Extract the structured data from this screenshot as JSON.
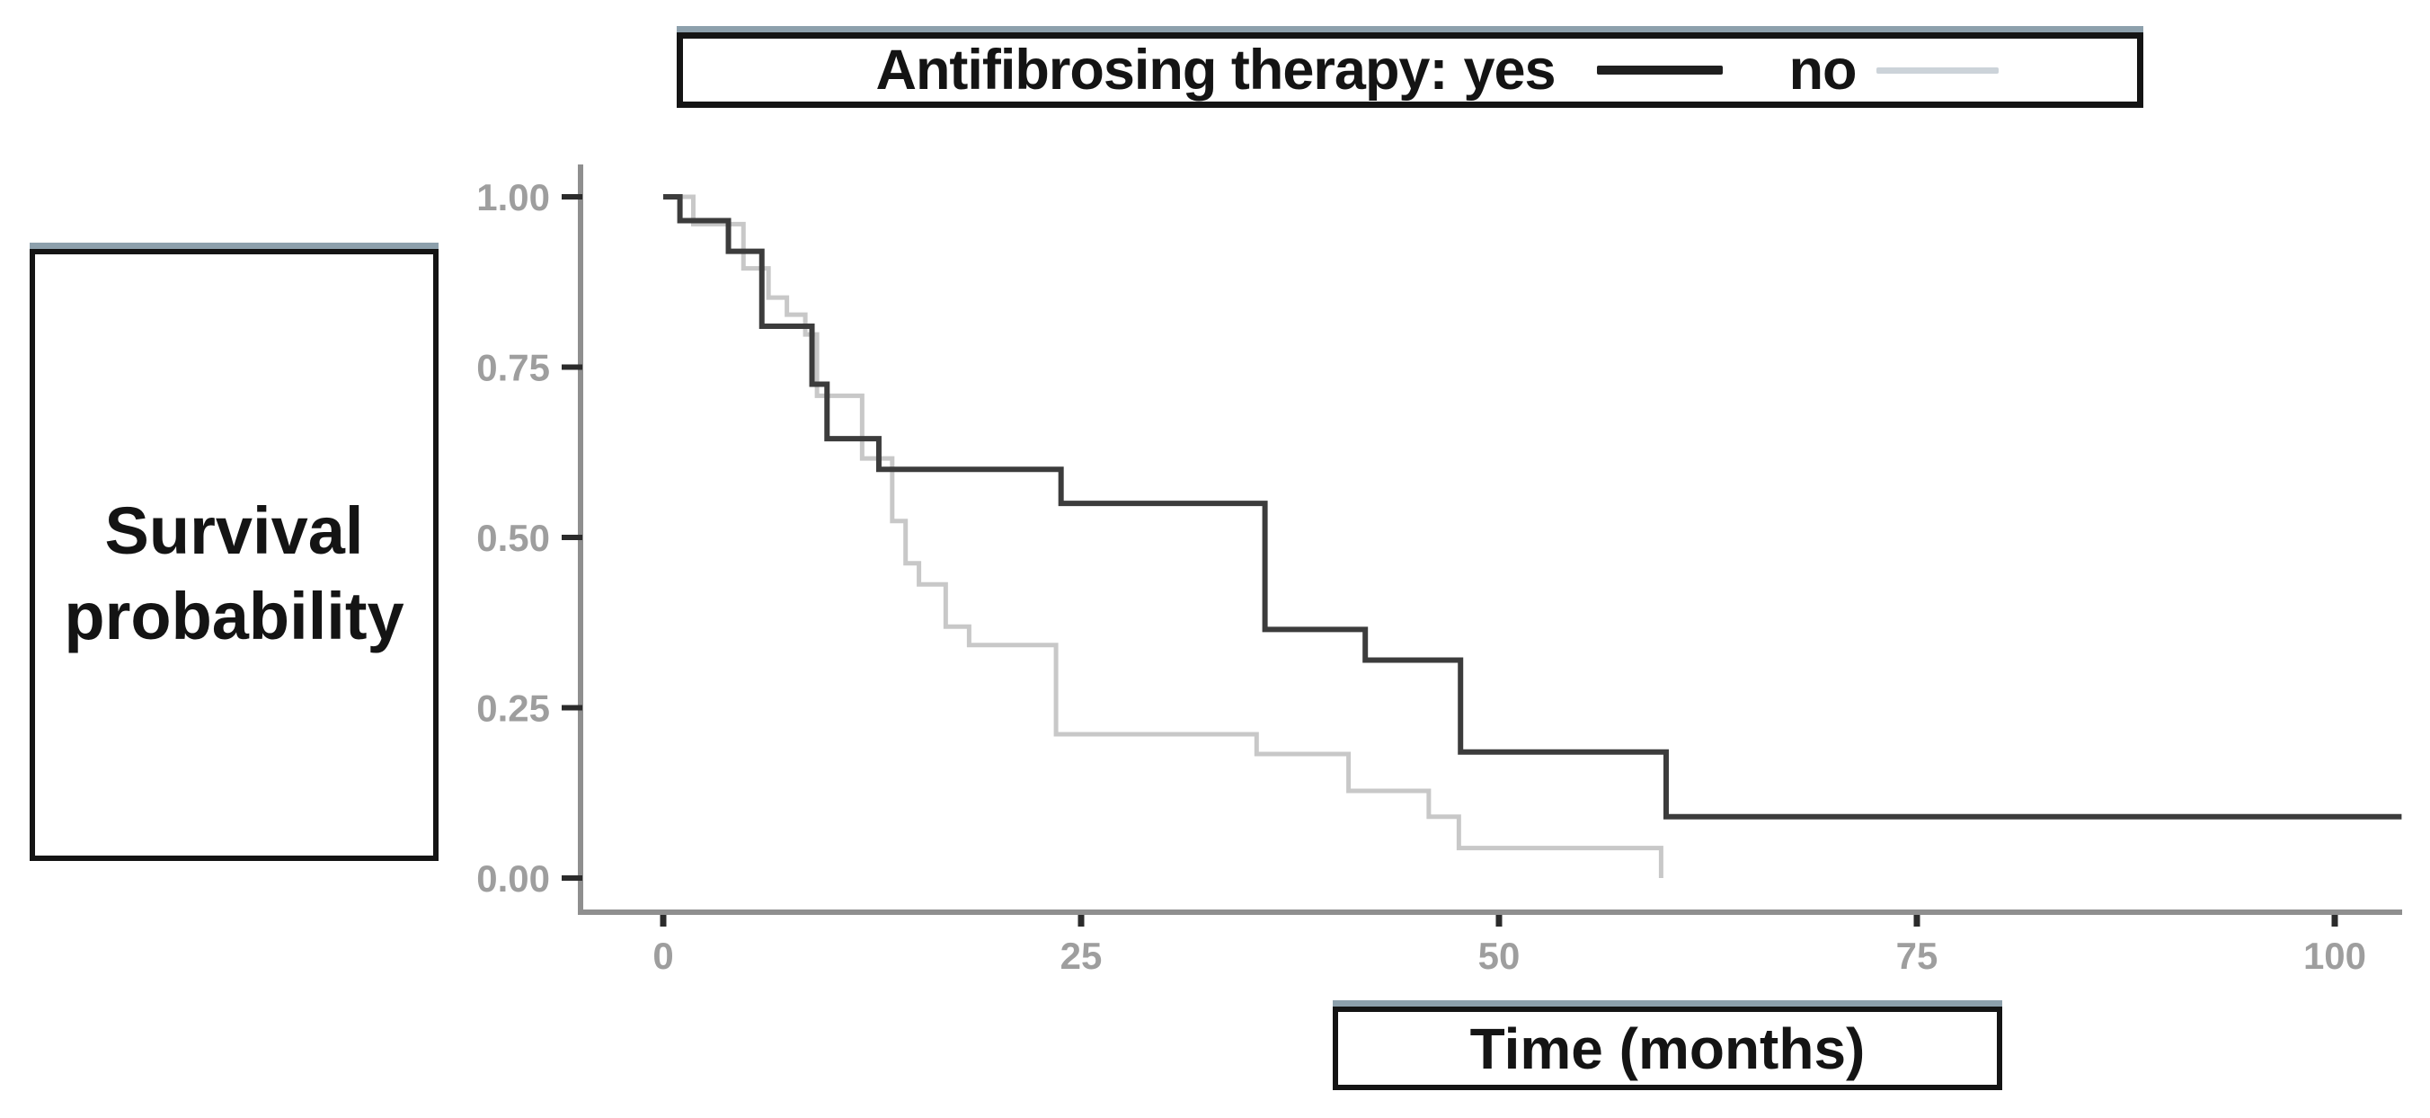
{
  "legend": {
    "title": "Antifibrosing therapy:",
    "items": [
      {
        "label": "yes",
        "color": "#1f1f1f"
      },
      {
        "label": "no",
        "color": "#ccd3d9"
      }
    ]
  },
  "y_axis": {
    "label": "Survival probability",
    "ticks": [
      "1.00",
      "0.75",
      "0.50",
      "0.25",
      "0.00"
    ],
    "tick_values": [
      1.0,
      0.75,
      0.5,
      0.25,
      0.0
    ]
  },
  "x_axis": {
    "label": "Time (months)",
    "ticks": [
      "0",
      "25",
      "50",
      "75",
      "100"
    ],
    "tick_values": [
      0,
      25,
      50,
      75,
      100
    ]
  },
  "chart_data": {
    "type": "line",
    "subtype": "kaplan-meier-step",
    "title": "Antifibrosing therapy: yes vs no",
    "xlabel": "Time (months)",
    "ylabel": "Survival probability",
    "xlim": [
      0,
      104
    ],
    "ylim": [
      0.0,
      1.0
    ],
    "grid": false,
    "legend_position": "top",
    "colors": {
      "yes_curve": "#3c3c3c",
      "no_curve": "#c8c8c8",
      "axis_line": "#8f8f8f",
      "tick_mark": "#2b2b2b",
      "tick_text": "#9e9e9e"
    },
    "series": [
      {
        "name": "no",
        "color": "#c8c8c8",
        "stroke_width": 5,
        "tail_to_x": null,
        "points": [
          [
            0,
            1.0
          ],
          [
            1.8,
            0.96
          ],
          [
            4.8,
            0.895
          ],
          [
            6.3,
            0.852
          ],
          [
            7.4,
            0.827
          ],
          [
            8.5,
            0.798
          ],
          [
            9.2,
            0.708
          ],
          [
            11.9,
            0.616
          ],
          [
            13.7,
            0.524
          ],
          [
            14.5,
            0.462
          ],
          [
            15.3,
            0.431
          ],
          [
            16.9,
            0.369
          ],
          [
            18.3,
            0.342
          ],
          [
            23.5,
            0.211
          ],
          [
            35.5,
            0.182
          ],
          [
            41.0,
            0.128
          ],
          [
            45.8,
            0.09
          ],
          [
            47.6,
            0.044
          ],
          [
            59.7,
            0.0
          ]
        ]
      },
      {
        "name": "yes",
        "color": "#3c3c3c",
        "stroke_width": 6,
        "tail_to_x": 104,
        "points": [
          [
            0,
            1.0
          ],
          [
            1.0,
            0.965
          ],
          [
            3.9,
            0.92
          ],
          [
            5.9,
            0.81
          ],
          [
            8.9,
            0.725
          ],
          [
            9.8,
            0.645
          ],
          [
            12.9,
            0.6
          ],
          [
            23.8,
            0.55
          ],
          [
            36.0,
            0.365
          ],
          [
            42.0,
            0.32
          ],
          [
            47.7,
            0.185
          ],
          [
            60.0,
            0.09
          ]
        ]
      }
    ]
  }
}
